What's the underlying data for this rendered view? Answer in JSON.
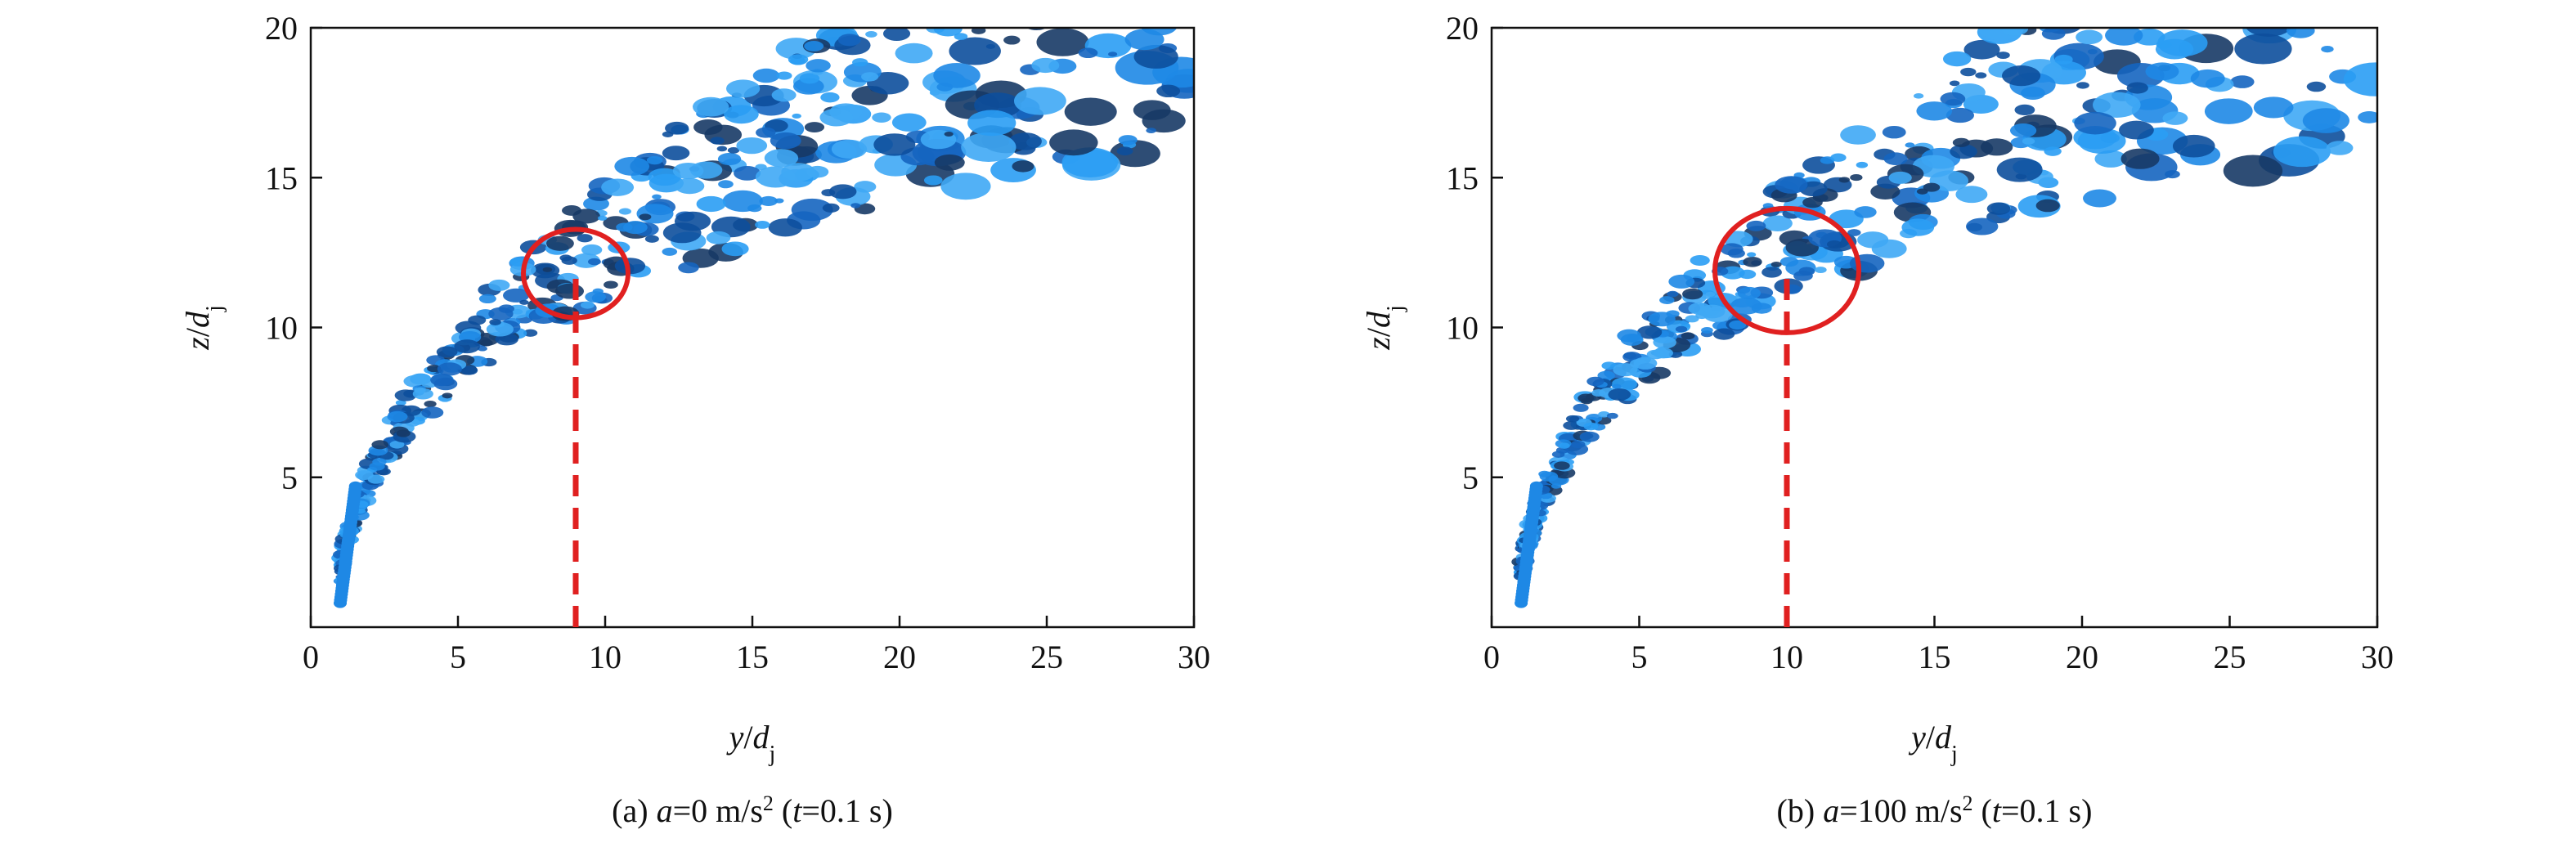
{
  "chart_data": [
    {
      "type": "image-plot",
      "xlabel": [
        "y",
        "/",
        "d",
        "j"
      ],
      "ylabel": [
        "z",
        "/",
        "d",
        "j"
      ],
      "xlim": [
        0,
        30
      ],
      "ylim": [
        0,
        20
      ],
      "xticks": [
        0,
        5,
        10,
        15,
        20,
        25,
        30
      ],
      "yticks": [
        5,
        10,
        15,
        20
      ],
      "marker": {
        "x": 9,
        "z": 11.8
      },
      "marker_color": "#e02020",
      "caption": [
        "(a) ",
        "a",
        "=0 m/s",
        "2",
        " (",
        "t",
        "=0.1 s)"
      ]
    },
    {
      "type": "image-plot",
      "xlabel": [
        "y",
        "/",
        "d",
        "j"
      ],
      "ylabel": [
        "z",
        "/",
        "d",
        "j"
      ],
      "xlim": [
        0,
        30
      ],
      "ylim": [
        0,
        20
      ],
      "xticks": [
        0,
        5,
        10,
        15,
        20,
        25,
        30
      ],
      "yticks": [
        5,
        10,
        15,
        20
      ],
      "marker": {
        "x": 10,
        "z": 11.9
      },
      "marker_color": "#e02020",
      "caption": [
        "(b) ",
        "a",
        "=100 m/s",
        "2",
        " (",
        "t",
        "=0.1 s)"
      ]
    }
  ]
}
